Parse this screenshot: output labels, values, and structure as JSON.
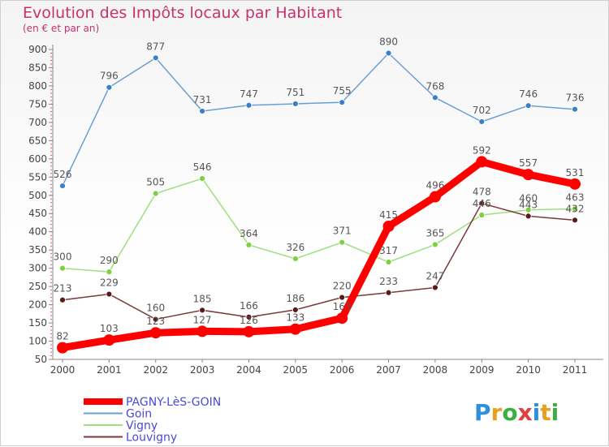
{
  "chart_data": {
    "type": "line",
    "title": "Evolution des Impôts locaux par Habitant",
    "subtitle": "(en € et par an)",
    "xlabel": "",
    "ylabel": "",
    "x": [
      "2000",
      "2001",
      "2002",
      "2003",
      "2004",
      "2005",
      "2006",
      "2007",
      "2008",
      "2009",
      "2010",
      "2011"
    ],
    "ylim": [
      50,
      900
    ],
    "yticks": [
      50,
      100,
      150,
      200,
      250,
      300,
      350,
      400,
      450,
      500,
      550,
      600,
      650,
      700,
      750,
      800,
      850,
      900
    ],
    "grid": false,
    "legend_position": "bottom-left",
    "series": [
      {
        "name": "PAGNY-LèS-GOIN",
        "color": "#ff0000",
        "emphasis": true,
        "values": [
          82,
          103,
          123,
          127,
          126,
          133,
          163,
          415,
          496,
          592,
          557,
          531
        ]
      },
      {
        "name": "Goin",
        "color": "#6a9fd4",
        "point_color": "#3a7fc8",
        "emphasis": false,
        "values": [
          526,
          796,
          877,
          731,
          747,
          751,
          755,
          890,
          768,
          702,
          746,
          736
        ]
      },
      {
        "name": "Vigny",
        "color": "#9ee080",
        "point_color": "#7ed040",
        "emphasis": false,
        "values": [
          300,
          290,
          505,
          546,
          364,
          326,
          371,
          317,
          365,
          446,
          460,
          463
        ]
      },
      {
        "name": "Louvigny",
        "color": "#7a3a3a",
        "point_color": "#5a1a1a",
        "emphasis": false,
        "values": [
          213,
          229,
          160,
          185,
          166,
          186,
          220,
          233,
          247,
          478,
          443,
          432
        ]
      }
    ]
  },
  "watermark": {
    "text": "Proxiti"
  }
}
